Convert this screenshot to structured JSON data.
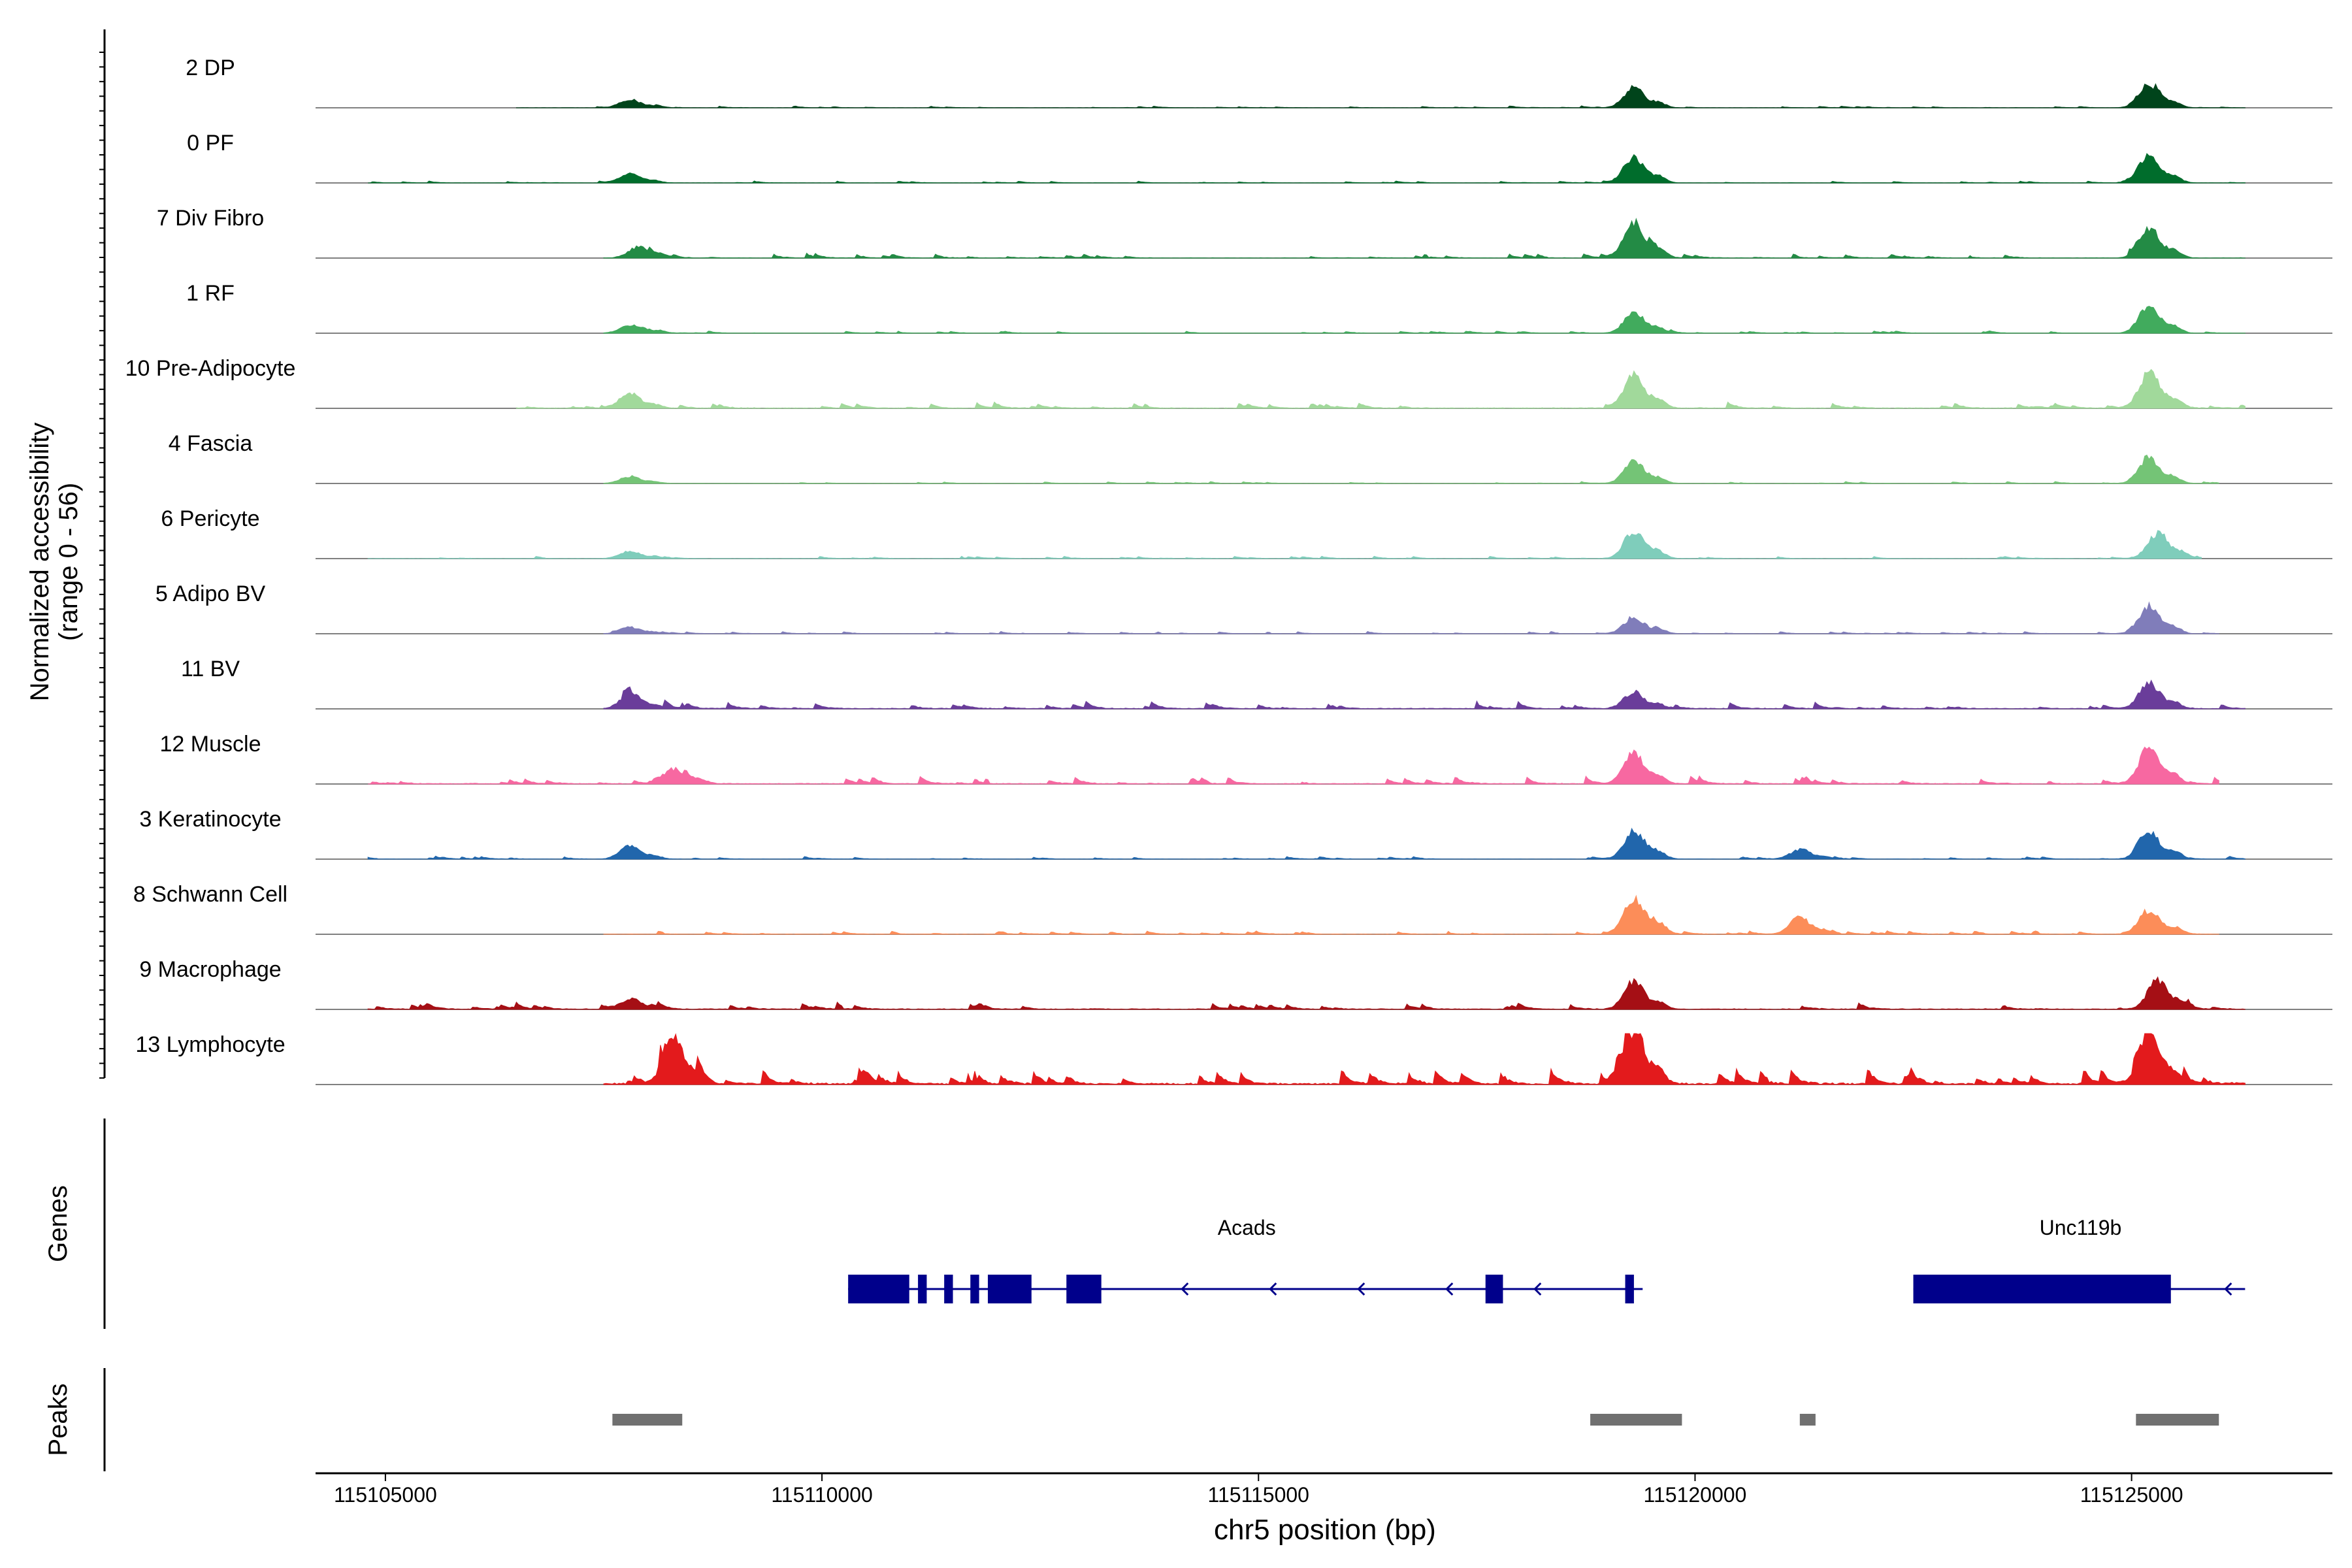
{
  "chart_data": {
    "type": "area",
    "title": "",
    "ylabel_line1": "Normalized accessibility",
    "ylabel_line2": "(range 0 - 56)",
    "yrange": [
      0,
      56
    ],
    "xlabel": "chr5 position (bp)",
    "xlim": [
      115104200,
      115127300
    ],
    "xticks": [
      115105000,
      115110000,
      115115000,
      115120000,
      115125000
    ],
    "xtick_labels": [
      "115105000",
      "115110000",
      "115115000",
      "115120000",
      "115125000"
    ],
    "genes_label": "Genes",
    "peaks_label": "Peaks",
    "tracks": [
      {
        "name": "2 DP",
        "color": "#00441b",
        "peaks": [
          [
            115107800,
            9
          ],
          [
            115119300,
            22
          ],
          [
            115125200,
            26
          ]
        ],
        "noise": 0.8,
        "span": [
          115106500,
          115126300
        ]
      },
      {
        "name": "0 PF",
        "color": "#006d2c",
        "peaks": [
          [
            115107800,
            10
          ],
          [
            115119300,
            28
          ],
          [
            115125200,
            30
          ]
        ],
        "noise": 0.8,
        "span": [
          115104800,
          115126300
        ]
      },
      {
        "name": "7 Div Fibro",
        "color": "#238b45",
        "peaks": [
          [
            115107900,
            12
          ],
          [
            115119300,
            38
          ],
          [
            115125200,
            32
          ]
        ],
        "noise": 1.8,
        "span": [
          115107500,
          115126300
        ]
      },
      {
        "name": "1 RF",
        "color": "#41ab5d",
        "peaks": [
          [
            115107800,
            9
          ],
          [
            115119300,
            22
          ],
          [
            115125200,
            30
          ]
        ],
        "noise": 1.0,
        "span": [
          115107500,
          115126300
        ]
      },
      {
        "name": "10 Pre-Adipocyte",
        "color": "#a1d99b",
        "peaks": [
          [
            115107800,
            16
          ],
          [
            115119300,
            36
          ],
          [
            115125200,
            38
          ]
        ],
        "noise": 2.6,
        "span": [
          115106500,
          115126300
        ]
      },
      {
        "name": "4 Fascia",
        "color": "#74c476",
        "peaks": [
          [
            115107800,
            7
          ],
          [
            115119300,
            24
          ],
          [
            115125200,
            28
          ]
        ],
        "noise": 0.8,
        "span": [
          115107500,
          115126000
        ]
      },
      {
        "name": "6 Pericyte",
        "color": "#7fcdbb",
        "peaks": [
          [
            115107800,
            8
          ],
          [
            115119300,
            30
          ],
          [
            115125300,
            28
          ]
        ],
        "noise": 1.0,
        "span": [
          115104800,
          115125800
        ]
      },
      {
        "name": "5 Adipo BV",
        "color": "#807dba",
        "peaks": [
          [
            115107800,
            7
          ],
          [
            115119300,
            18
          ],
          [
            115125200,
            30
          ]
        ],
        "noise": 0.9,
        "span": [
          115107500,
          115126000
        ]
      },
      {
        "name": "11 BV",
        "color": "#6a3d9a",
        "peaks": [
          [
            115107800,
            16
          ],
          [
            115119300,
            18
          ],
          [
            115125200,
            28
          ]
        ],
        "noise": 3.0,
        "span": [
          115107500,
          115126300
        ]
      },
      {
        "name": "12 Muscle",
        "color": "#f768a1",
        "peaks": [
          [
            115108300,
            16
          ],
          [
            115119300,
            34
          ],
          [
            115125200,
            40
          ]
        ],
        "noise": 3.0,
        "span": [
          115104800,
          115126000
        ]
      },
      {
        "name": "3 Keratinocyte",
        "color": "#2166ac",
        "peaks": [
          [
            115107800,
            14
          ],
          [
            115119300,
            30
          ],
          [
            115121200,
            10
          ],
          [
            115125200,
            30
          ]
        ],
        "noise": 1.2,
        "span": [
          115104800,
          115126300
        ]
      },
      {
        "name": "8 Schwann Cell",
        "color": "#fc8d59",
        "peaks": [
          [
            115119300,
            40
          ],
          [
            115121200,
            18
          ],
          [
            115125200,
            26
          ]
        ],
        "noise": 1.4,
        "span": [
          115107500,
          115126000
        ]
      },
      {
        "name": "9 Macrophage",
        "color": "#a50f15",
        "peaks": [
          [
            115107800,
            10
          ],
          [
            115119300,
            30
          ],
          [
            115125300,
            32
          ]
        ],
        "noise": 3.0,
        "span": [
          115104800,
          115126300
        ]
      },
      {
        "name": "13 Lymphocyte",
        "color": "#e31a1c",
        "peaks": [
          [
            115108300,
            52
          ],
          [
            115119300,
            56
          ],
          [
            115125200,
            56
          ]
        ],
        "noise": 7.0,
        "span": [
          115107500,
          115126300
        ]
      }
    ],
    "genes": [
      {
        "name": "Acads",
        "strand": "-",
        "start": 115110300,
        "end": 115119400,
        "exons": [
          [
            115110300,
            115111000
          ],
          [
            115111100,
            115111200
          ],
          [
            115111400,
            115111500
          ],
          [
            115111700,
            115111800
          ],
          [
            115111900,
            115112400
          ],
          [
            115112800,
            115113200
          ],
          [
            115117600,
            115117800
          ],
          [
            115119200,
            115119300
          ]
        ]
      },
      {
        "name": "Unc119b",
        "strand": "-",
        "start": 115122500,
        "end": 115126300,
        "exons": [
          [
            115122500,
            115125450
          ]
        ]
      }
    ],
    "gene_color": "#00008b",
    "peak_color": "#707070",
    "peak_regions": [
      [
        115107600,
        115108400
      ],
      [
        115118800,
        115119850
      ],
      [
        115121200,
        115121380
      ],
      [
        115125050,
        115126000
      ]
    ]
  }
}
